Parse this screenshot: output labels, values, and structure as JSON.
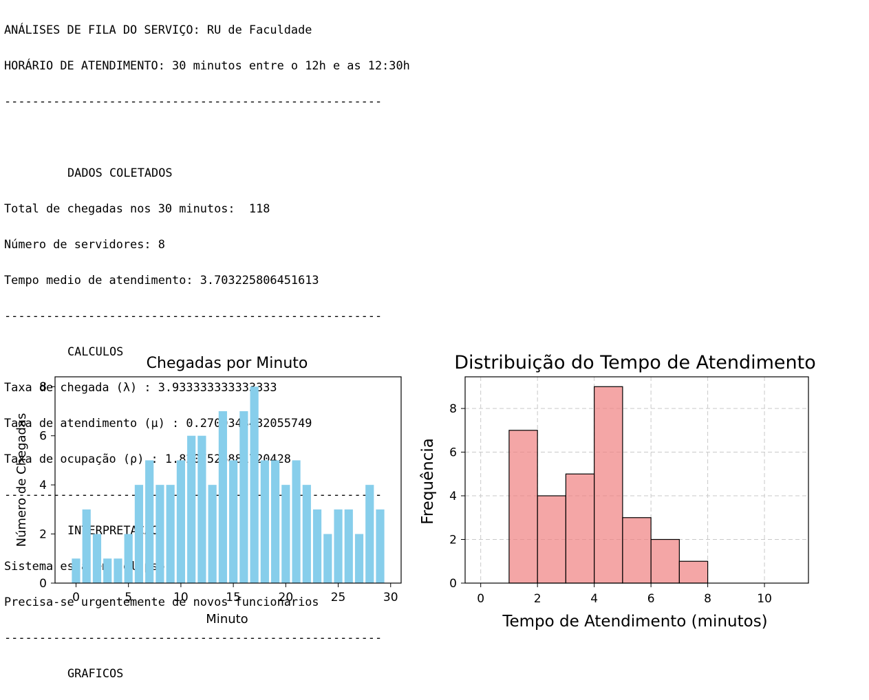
{
  "console": {
    "header1": "ANÁLISES DE FILA DO SERVIÇO: RU de Faculdade",
    "header2": "HORÁRIO DE ATENDIMENTO: 30 minutos entre o 12h e as 12:30h",
    "separator": "------------------------------------------------------",
    "section_dados": "DADOS COLETADOS",
    "total_chegadas": "Total de chegadas nos 30 minutos:  118",
    "num_servidores": "Número de servidores: 8",
    "tempo_medio": "Tempo medio de atendimento: 3.703225806451613",
    "section_calculos": "CALCULOS",
    "taxa_chegada": "Taxa de chegada (λ) : 3.933333333333333",
    "taxa_atendimento": "Taxa de atendimento (μ) : 0.2700348432055749",
    "taxa_ocupacao": "Taxa de ocupação (ρ) : 1.8207526881720428",
    "section_interpretacao": "INTERPRETAÇÃO",
    "interp1": "Sistema está em colapso",
    "interp2": "Precisa-se urgentemente de novos funcionarios",
    "section_graficos": "GRAFICOS"
  },
  "chart_data": [
    {
      "type": "bar",
      "title": "Chegadas por Minuto",
      "xlabel": "Minuto",
      "ylabel": "Número de Chegadas",
      "categories": [
        0,
        1,
        2,
        3,
        4,
        5,
        6,
        7,
        8,
        9,
        10,
        11,
        12,
        13,
        14,
        15,
        16,
        17,
        18,
        19,
        20,
        21,
        22,
        23,
        24,
        25,
        26,
        27,
        28,
        29
      ],
      "values": [
        1,
        3,
        2,
        1,
        1,
        2,
        4,
        5,
        4,
        4,
        5,
        6,
        6,
        4,
        7,
        5,
        7,
        8,
        5,
        5,
        4,
        5,
        4,
        3,
        2,
        3,
        3,
        2,
        4,
        3
      ],
      "xlim": [
        -2,
        31
      ],
      "ylim": [
        0,
        8.4
      ],
      "xticks": [
        0,
        5,
        10,
        15,
        20,
        25,
        30
      ],
      "yticks": [
        0,
        2,
        4,
        6,
        8
      ],
      "color": "#87ceeb",
      "grid": false
    },
    {
      "type": "histogram",
      "title": "Distribuição do Tempo de Atendimento",
      "xlabel": "Tempo de Atendimento (minutos)",
      "ylabel": "Frequência",
      "bin_edges": [
        0,
        1,
        2,
        3,
        4,
        5,
        6,
        7,
        8,
        9,
        10,
        11
      ],
      "values": [
        0,
        7,
        4,
        5,
        9,
        3,
        2,
        1,
        0,
        0,
        0
      ],
      "xlim": [
        -0.55,
        11.55
      ],
      "ylim": [
        0,
        9.45
      ],
      "xticks": [
        0,
        2,
        4,
        6,
        8,
        10
      ],
      "yticks": [
        0,
        2,
        4,
        6,
        8
      ],
      "color": "#f08080",
      "edgecolor": "#000000",
      "grid": true
    }
  ]
}
